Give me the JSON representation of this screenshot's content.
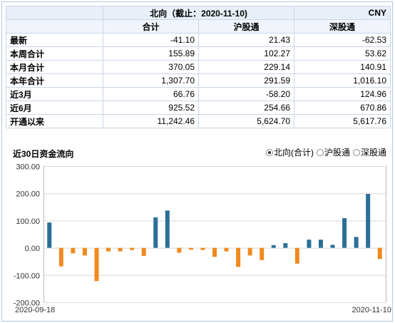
{
  "table": {
    "title": "北向（截止：2020-11-10)",
    "currency": "CNY",
    "columns": [
      "合计",
      "沪股通",
      "深股通"
    ],
    "rows": [
      {
        "label": "最新",
        "values": [
          "-41.10",
          "21.43",
          "-62.53"
        ]
      },
      {
        "label": "本周合计",
        "values": [
          "155.89",
          "102.27",
          "53.62"
        ]
      },
      {
        "label": "本月合计",
        "values": [
          "370.05",
          "229.14",
          "140.91"
        ]
      },
      {
        "label": "本年合计",
        "values": [
          "1,307.70",
          "291.59",
          "1,016.10"
        ]
      },
      {
        "label": "近3月",
        "values": [
          "66.76",
          "-58.20",
          "124.96"
        ]
      },
      {
        "label": "近6月",
        "values": [
          "925.52",
          "254.66",
          "670.86"
        ]
      },
      {
        "label": "开通以来",
        "values": [
          "11,242.46",
          "5,624.70",
          "5,617.76"
        ]
      }
    ]
  },
  "legend": {
    "selected": "北向(合计)",
    "options": [
      "北向(合计)",
      "沪股通",
      "深股通"
    ]
  },
  "colors": {
    "positive": "#2a6f97",
    "negative": "#ef8a1f",
    "grid": "#d9d9d9"
  },
  "chart_data": {
    "type": "bar",
    "title": "近30日资金流向",
    "x_start_label": "2020-09-18",
    "x_end_label": "2020-11-10",
    "ylim": [
      -200,
      300
    ],
    "yticks": [
      "300.00",
      "200.00",
      "100.00",
      "0.00",
      "-100.00",
      "-200.00"
    ],
    "ytick_values": [
      300,
      200,
      100,
      0,
      -100,
      -200
    ],
    "values": [
      93,
      -68,
      -20,
      -28,
      -122,
      -13,
      -13,
      -8,
      -30,
      112,
      137,
      -18,
      -7,
      -8,
      -33,
      -13,
      -70,
      -28,
      -45,
      10,
      17,
      -58,
      30,
      30,
      11,
      109,
      40,
      198,
      -41
    ]
  }
}
